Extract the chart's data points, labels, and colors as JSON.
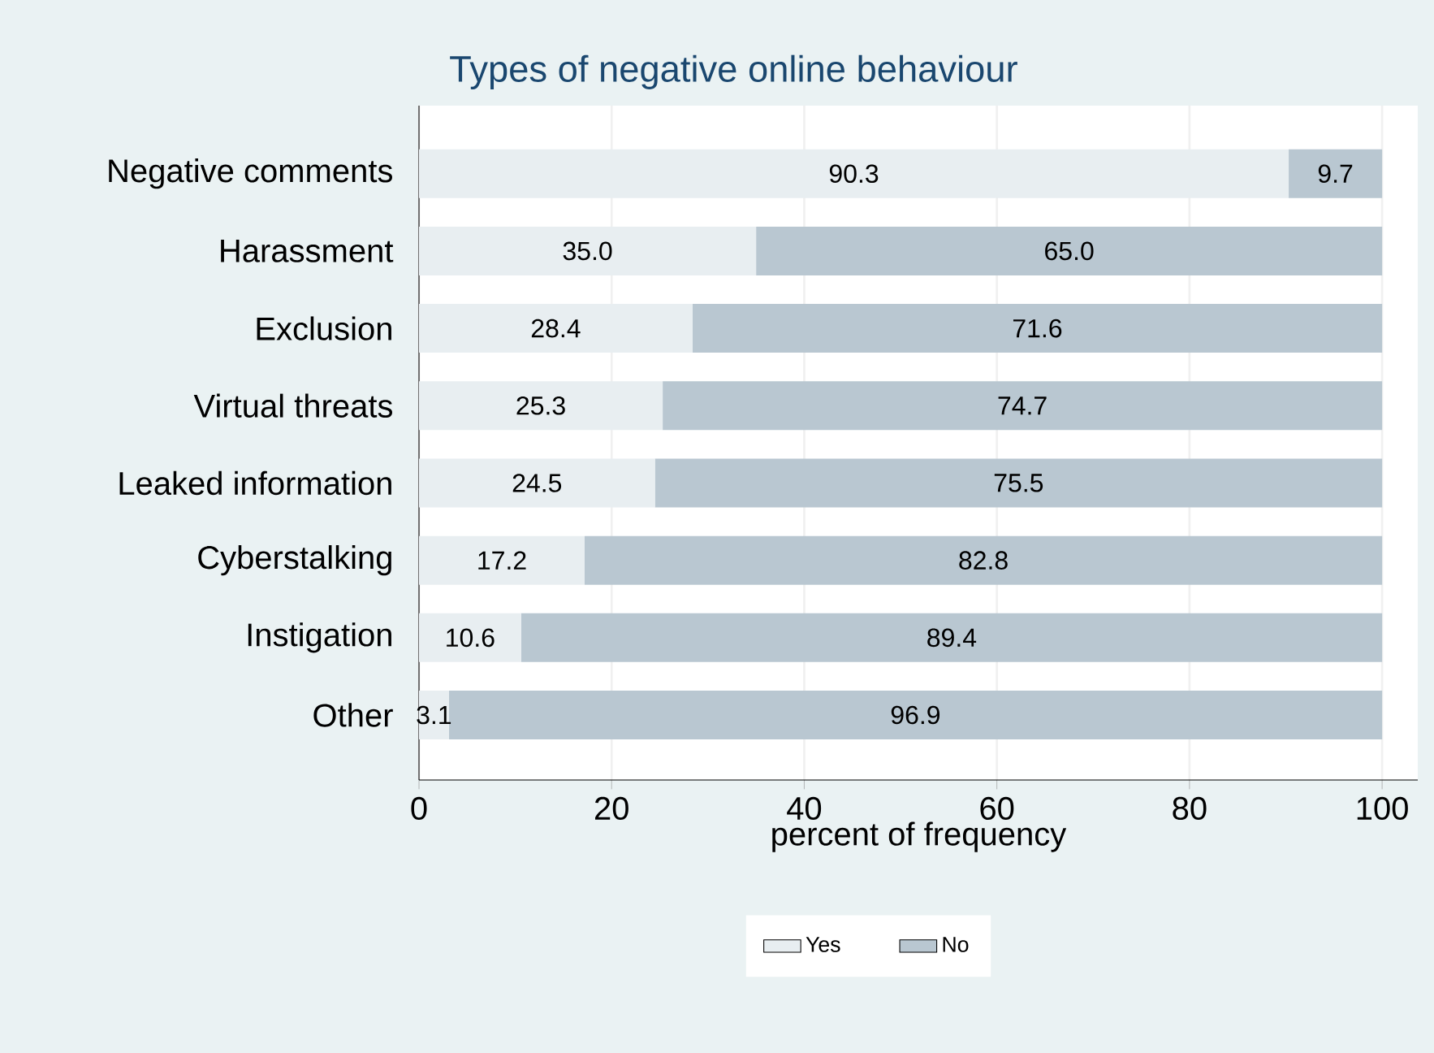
{
  "chart_data": {
    "type": "bar",
    "orientation": "horizontal",
    "stacked": true,
    "title": "Types of negative online behaviour",
    "xlabel": "percent of frequency",
    "categories": [
      "Negative comments",
      "Harassment",
      "Exclusion",
      "Virtual threats",
      "Leaked information",
      "Cyberstalking",
      "Instigation",
      "Other"
    ],
    "series": [
      {
        "name": "Yes",
        "color": "#e8eef1",
        "values": [
          90.3,
          35.0,
          28.4,
          25.3,
          24.5,
          17.2,
          10.6,
          3.1
        ],
        "value_labels": [
          "90.3",
          "35.0",
          "28.4",
          "25.3",
          "24.5",
          "17.2",
          "10.6",
          "3.1"
        ]
      },
      {
        "name": "No",
        "color": "#b9c7d1",
        "values": [
          9.7,
          65.0,
          71.6,
          74.7,
          75.5,
          82.8,
          89.4,
          96.9
        ],
        "value_labels": [
          "9.7",
          "65.0",
          "71.6",
          "74.7",
          "75.5",
          "82.8",
          "89.4",
          "96.9"
        ]
      }
    ],
    "xlim": [
      0,
      103.7
    ],
    "xticks": [
      0,
      20,
      40,
      60,
      80,
      100
    ],
    "grid": "x",
    "legend": "bottom"
  }
}
